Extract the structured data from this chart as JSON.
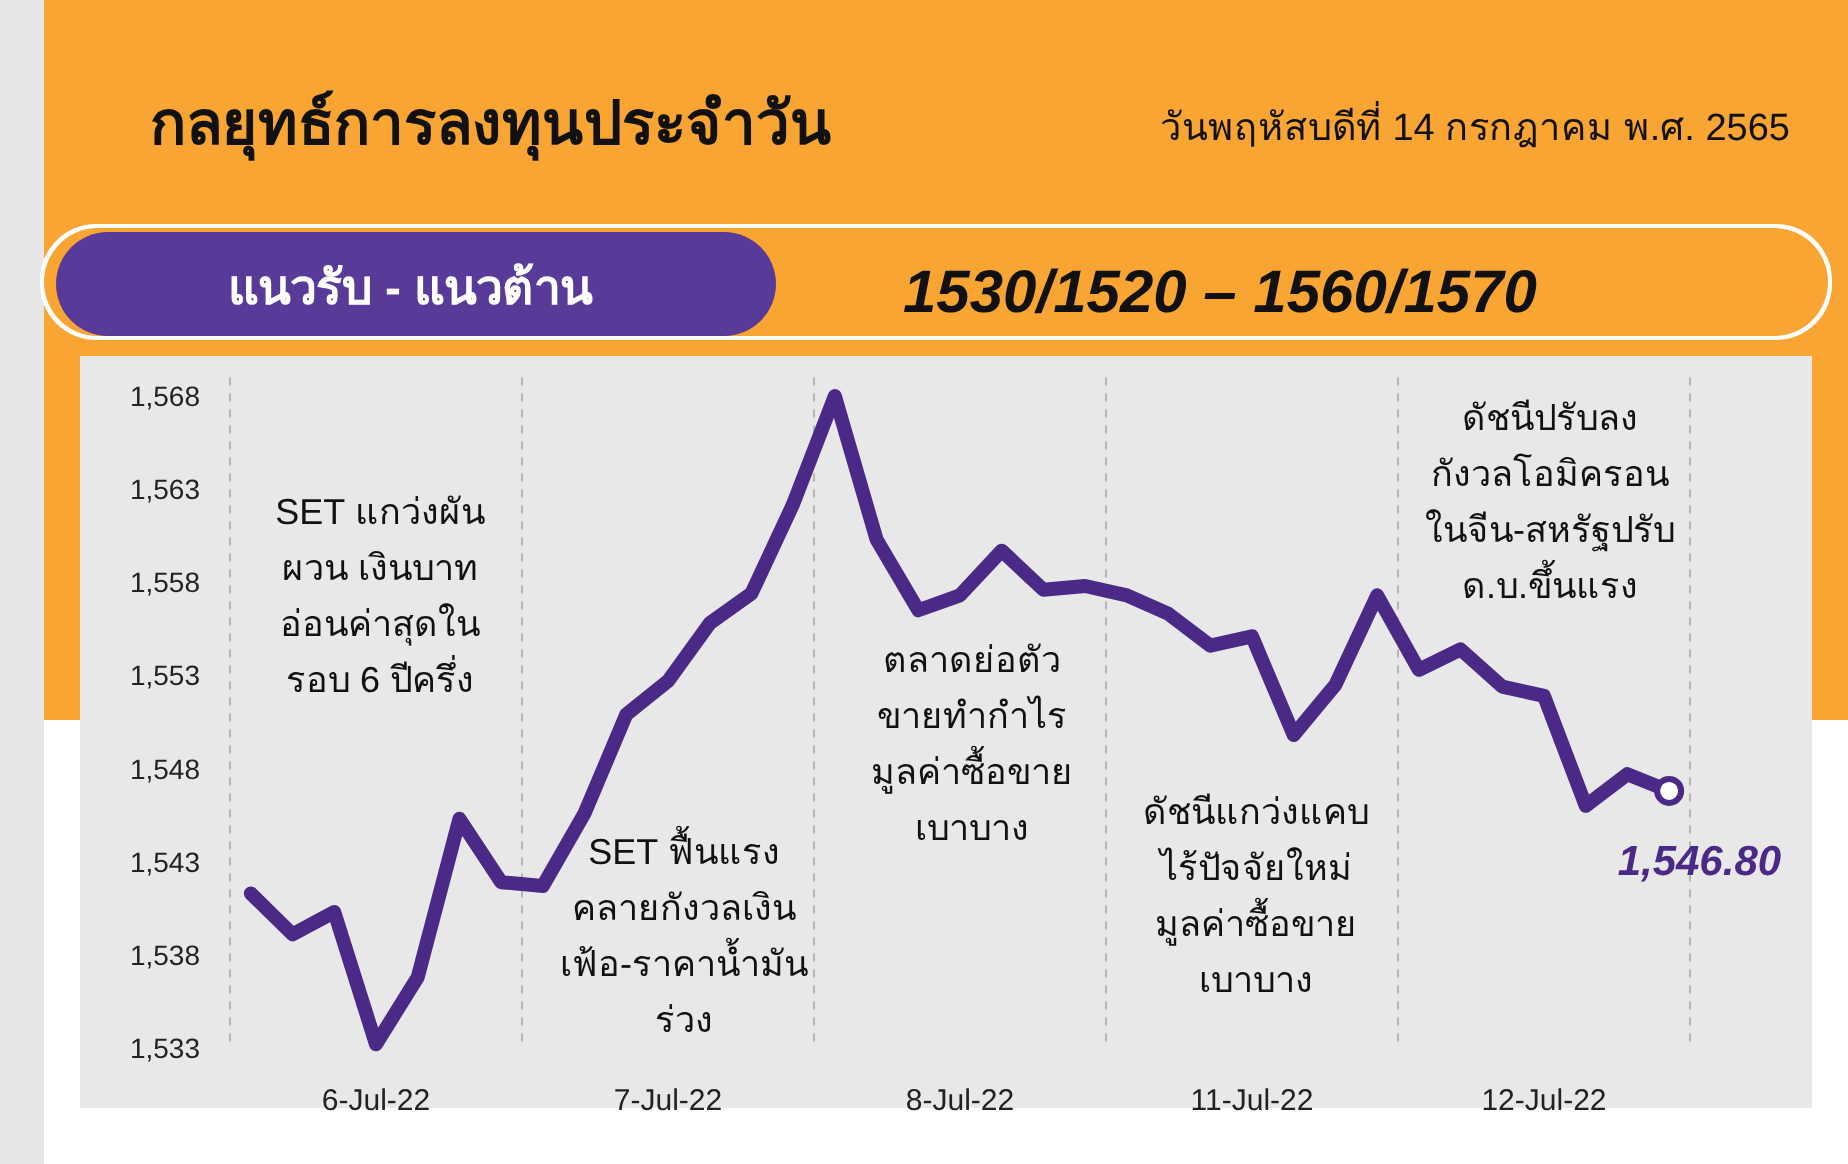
{
  "chart_data": {
    "type": "line",
    "title": "กลยุทธ์การลงทุนประจำวัน",
    "subtitle": "วันพฤหัสบดีที่ 14 กรกฎาคม พ.ศ. 2565",
    "categories": [
      null,
      null,
      null,
      "6-Jul-22",
      null,
      null,
      null,
      null,
      null,
      null,
      "7-Jul-22",
      null,
      null,
      null,
      null,
      null,
      null,
      "8-Jul-22",
      null,
      null,
      null,
      null,
      null,
      null,
      "11-Jul-22",
      null,
      null,
      null,
      null,
      null,
      null,
      "12-Jul-22",
      null,
      null,
      null
    ],
    "series": [
      {
        "color": "#4b2a87",
        "values": [
          1541.3,
          1539.1,
          1540.3,
          1533.2,
          1536.8,
          1545.3,
          1541.9,
          1541.7,
          1545.6,
          1550.9,
          1552.7,
          1555.8,
          1557.4,
          1562.2,
          1568.0,
          1560.3,
          1556.5,
          1557.3,
          1559.7,
          1557.6,
          1557.8,
          1557.3,
          1556.3,
          1554.6,
          1555.1,
          1549.8,
          1552.5,
          1557.3,
          1553.3,
          1554.4,
          1552.4,
          1551.9,
          1546.0,
          1547.7,
          1546.8
        ]
      }
    ],
    "ylim": [
      1533,
      1569
    ],
    "yticks": [
      {
        "value": 1533,
        "label": "1,533"
      },
      {
        "value": 1538,
        "label": "1,538"
      },
      {
        "value": 1543,
        "label": "1,543"
      },
      {
        "value": 1548,
        "label": "1,548"
      },
      {
        "value": 1553,
        "label": "1,553"
      },
      {
        "value": 1558,
        "label": "1,558"
      },
      {
        "value": 1563,
        "label": "1,563"
      },
      {
        "value": 1568,
        "label": "1,568"
      }
    ],
    "annotations": [
      "แนวรับ - แนวต้าน",
      "1530/1520  –  1560/1570",
      "SET แกว่งผัน\nผวน เงินบาท\nอ่อนค่าสุดใน\nรอบ 6 ปีครึ่ง",
      "SET ฟื้นแรง\nคลายกังวลเงิน\nเฟ้อ-ราคาน้ำมัน\nร่วง",
      "ตลาดย่อตัว\nขายทำกำไร\nมูลค่าซื้อขาย\nเบาบาง",
      "ดัชนีแกว่งแคบ\nไร้ปัจจัยใหม่\nมูลค่าซื้อขาย\nเบาบาง",
      "ดัชนีปรับลง\nกังวลโอมิครอน\nในจีน-สหรัฐปรับ\nด.บ.ขึ้นแรง",
      "1,546.80"
    ]
  }
}
